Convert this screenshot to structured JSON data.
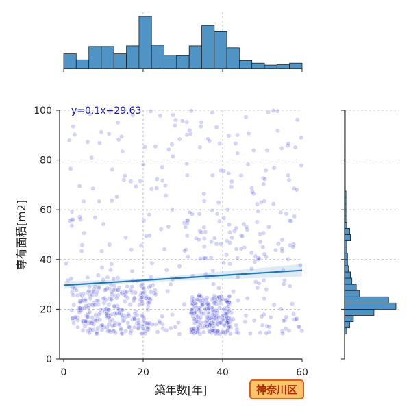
{
  "chart_data": {
    "type": "scatter",
    "title": "",
    "xlabel": "築年数[年]",
    "ylabel": "専有面積[m2]",
    "xlim": [
      -1,
      60
    ],
    "ylim": [
      0,
      100
    ],
    "xticks": [
      0,
      20,
      40,
      60
    ],
    "yticks": [
      0,
      20,
      40,
      60,
      80,
      100
    ],
    "grid": true,
    "point_color": "#2a2ad8",
    "regression": {
      "label": "y=0.1x+29.63",
      "slope": 0.1,
      "intercept": 29.63,
      "x_range": [
        0,
        60
      ],
      "line_color": "#1f77b4",
      "label_color": "#1515c8"
    },
    "clusters": [
      {
        "x_range": [
          0,
          60
        ],
        "y_range": [
          10,
          100
        ],
        "count": 260
      },
      {
        "x_range": [
          2,
          22
        ],
        "y_range": [
          10,
          30
        ],
        "count": 230
      },
      {
        "x_range": [
          32,
          42
        ],
        "y_range": [
          10,
          26
        ],
        "count": 200
      },
      {
        "x_range": [
          30,
          60
        ],
        "y_range": [
          40,
          60
        ],
        "count": 50
      },
      {
        "x_range": [
          0,
          60
        ],
        "y_range": [
          10,
          18
        ],
        "count": 60
      }
    ],
    "x_histogram": {
      "bin_edges": [
        0,
        3.16,
        6.32,
        9.47,
        12.63,
        15.79,
        18.95,
        22.11,
        25.26,
        28.42,
        31.58,
        34.74,
        37.89,
        41.05,
        44.21,
        47.37,
        50.53,
        53.68,
        56.84,
        60
      ],
      "counts": [
        22,
        13,
        33,
        33,
        22,
        34,
        78,
        35,
        20,
        19,
        34,
        64,
        56,
        31,
        12,
        8,
        5,
        6,
        8
      ],
      "fill_color": "#4f94c4"
    },
    "y_histogram": {
      "bin_width": 2.5,
      "bin_start": 10,
      "counts": [
        3,
        7,
        12,
        40,
        70,
        60,
        20,
        16,
        10,
        8,
        5,
        4,
        4,
        3,
        3,
        8,
        7,
        3,
        2,
        2,
        2,
        2,
        2,
        1,
        1,
        1,
        1,
        1,
        1,
        1,
        1,
        1,
        1,
        1,
        1,
        1
      ],
      "fill_color": "#4f94c4"
    }
  },
  "badge": {
    "text": "神奈川区",
    "bg_color": "#ffc36b",
    "border_color": "#e85a1a",
    "text_color": "#b02a00"
  }
}
